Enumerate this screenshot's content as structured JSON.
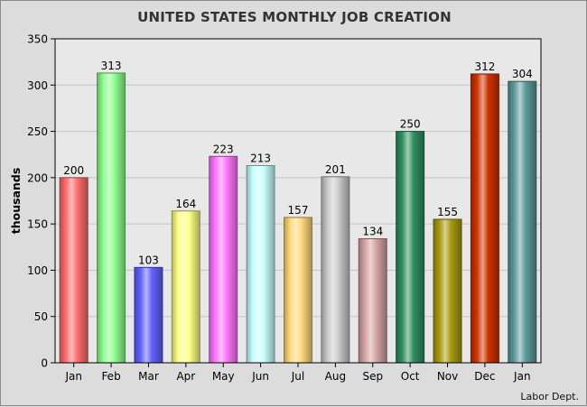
{
  "chart_data": {
    "type": "bar",
    "title": "UNITED STATES MONTHLY JOB CREATION",
    "xlabel": "",
    "ylabel": "thousands",
    "ylim": [
      0,
      350
    ],
    "yticks": [
      0,
      50,
      100,
      150,
      200,
      250,
      300,
      350
    ],
    "grid": true,
    "categories": [
      "Jan",
      "Feb",
      "Mar",
      "Apr",
      "May",
      "Jun",
      "Jul",
      "Aug",
      "Sep",
      "Oct",
      "Nov",
      "Dec",
      "Jan"
    ],
    "values": [
      200,
      313,
      103,
      164,
      223,
      213,
      157,
      201,
      134,
      250,
      155,
      312,
      304
    ],
    "bar_colors": [
      "#ff6e6e",
      "#8eff8e",
      "#6161ff",
      "#ffff88",
      "#ff77ff",
      "#c8ffff",
      "#ffd97a",
      "#c9c9c9",
      "#d6a3a3",
      "#2f8f60",
      "#a89a10",
      "#cc3300",
      "#5e9999"
    ],
    "source": "Labor Dept."
  }
}
